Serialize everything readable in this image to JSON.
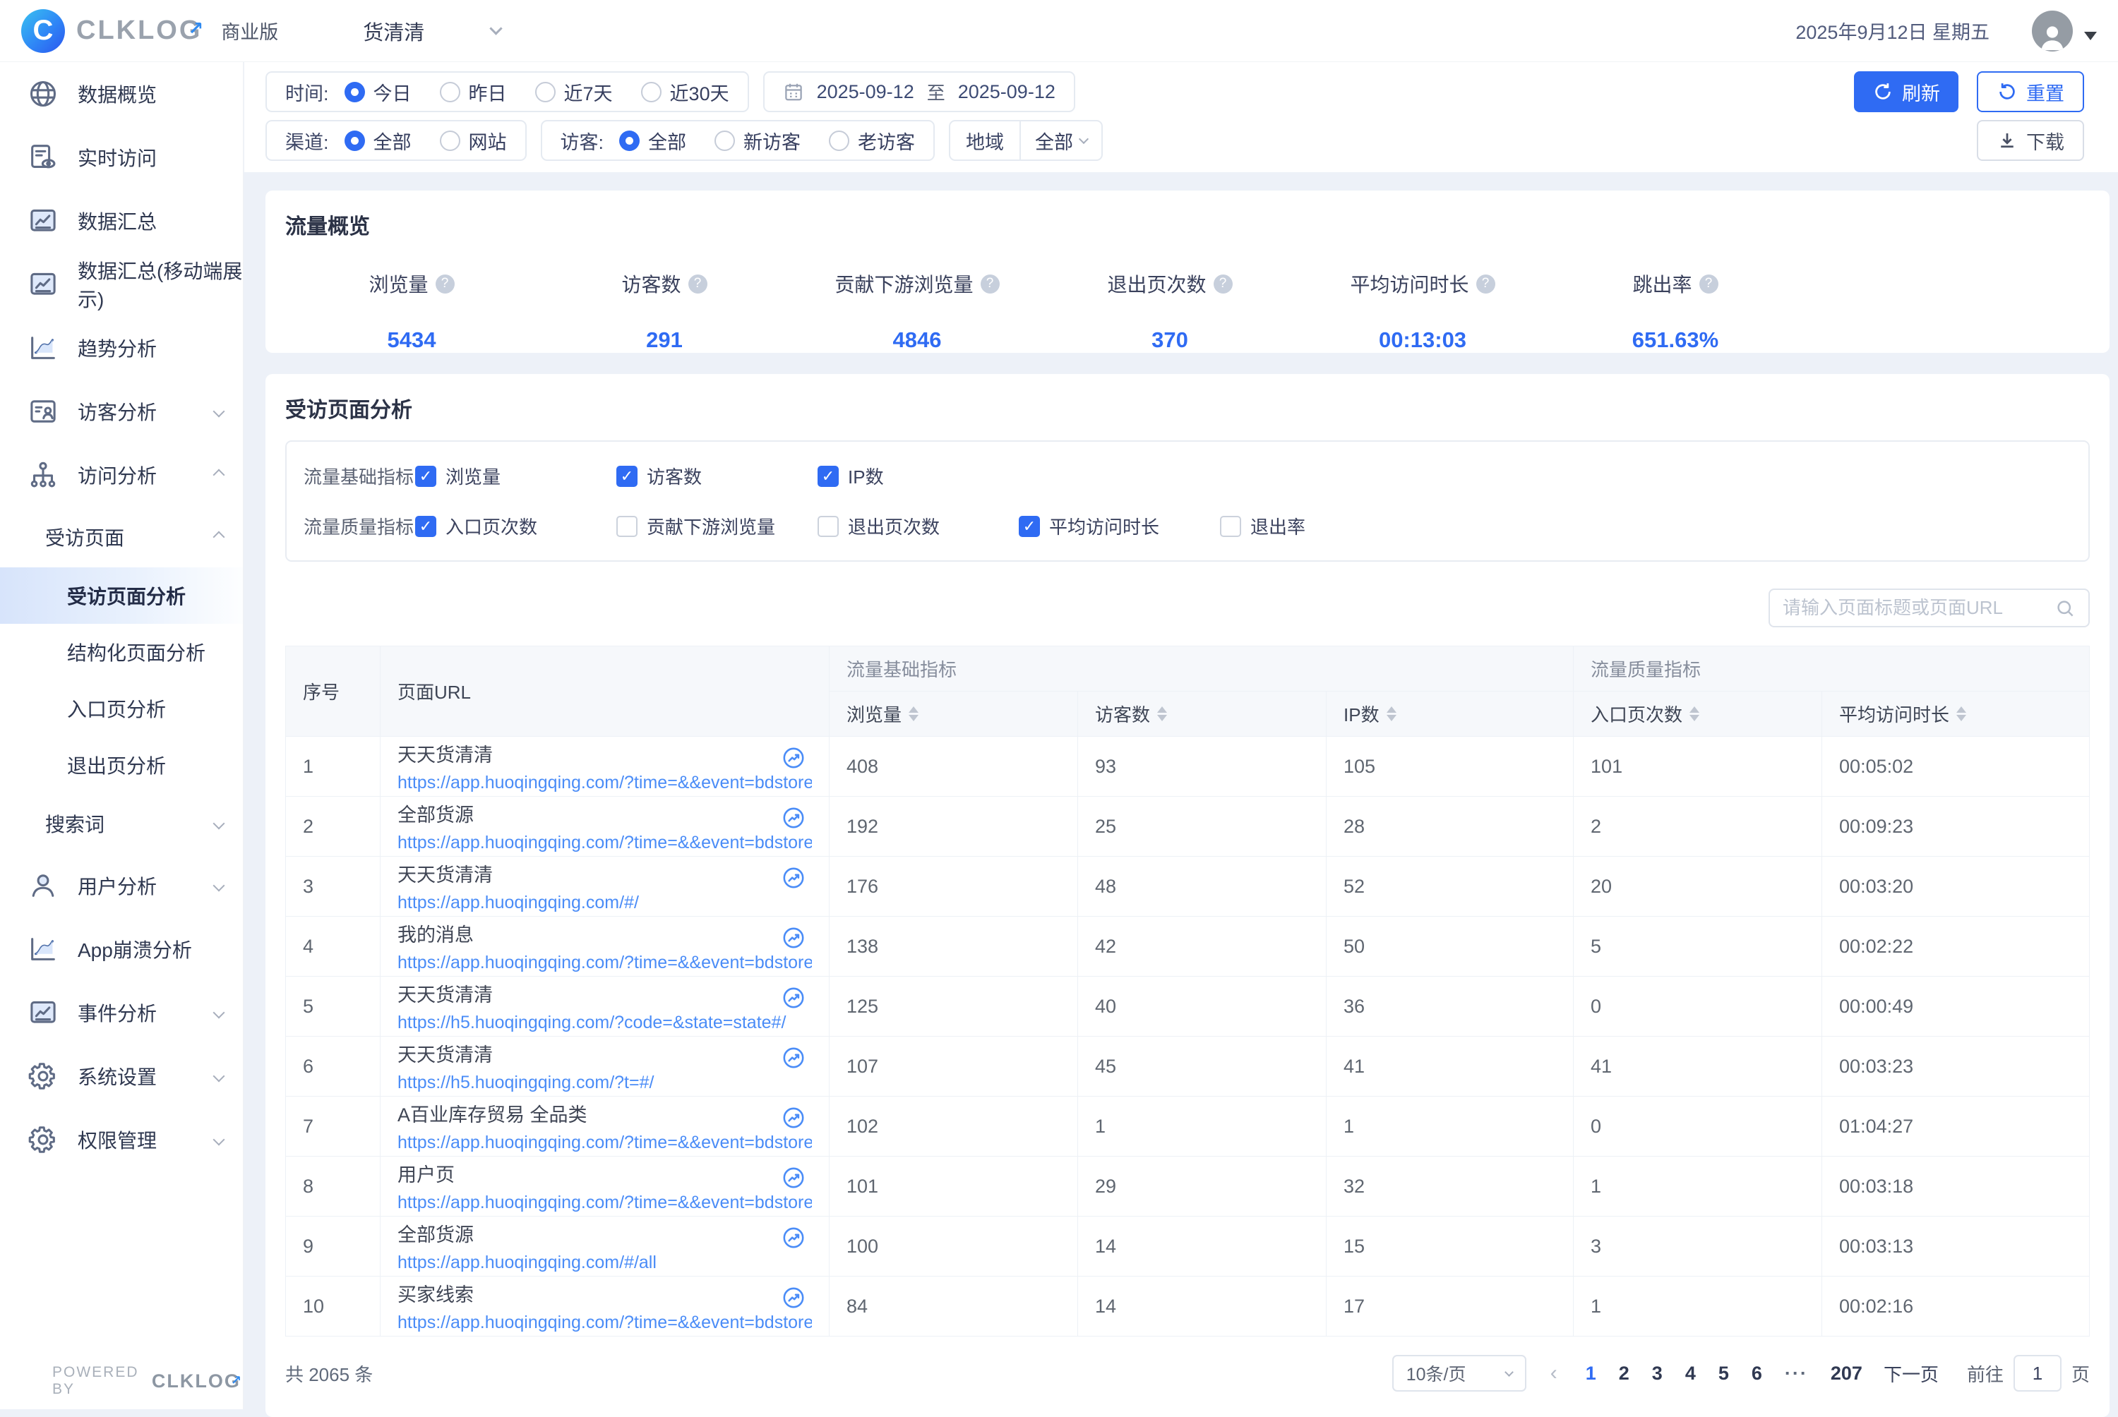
{
  "header": {
    "logo_letter": "C",
    "logo_text": "CLKLOG",
    "edition": "商业版",
    "project": "货清清",
    "date": "2025年9月12日 星期五"
  },
  "sidebar": {
    "items": [
      {
        "label": "数据概览",
        "icon": "globe",
        "type": "top"
      },
      {
        "label": "实时访问",
        "icon": "realtime",
        "type": "top"
      },
      {
        "label": "数据汇总",
        "icon": "report",
        "type": "top"
      },
      {
        "label": "数据汇总(移动端展示)",
        "icon": "report",
        "type": "top"
      },
      {
        "label": "趋势分析",
        "icon": "trend",
        "type": "top"
      },
      {
        "label": "访客分析",
        "icon": "visitor",
        "type": "top",
        "chevron": "down"
      },
      {
        "label": "访问分析",
        "icon": "visit",
        "type": "top",
        "chevron": "up"
      },
      {
        "label": "受访页面",
        "type": "sub1",
        "chevron": "up"
      },
      {
        "label": "受访页面分析",
        "type": "sub2",
        "active": true
      },
      {
        "label": "结构化页面分析",
        "type": "sub2"
      },
      {
        "label": "入口页分析",
        "type": "sub2"
      },
      {
        "label": "退出页分析",
        "type": "sub2"
      },
      {
        "label": "搜索词",
        "type": "sub1",
        "chevron": "down"
      },
      {
        "label": "用户分析",
        "icon": "user",
        "type": "top",
        "chevron": "down"
      },
      {
        "label": "App崩溃分析",
        "icon": "trend",
        "type": "top"
      },
      {
        "label": "事件分析",
        "icon": "report",
        "type": "top",
        "chevron": "down"
      },
      {
        "label": "系统设置",
        "icon": "gear",
        "type": "top",
        "chevron": "down"
      },
      {
        "label": "权限管理",
        "icon": "gear",
        "type": "top",
        "chevron": "down"
      }
    ],
    "powered_by": "POWERED BY",
    "powered_logo": "CLKLOG"
  },
  "filters": {
    "time": {
      "label": "时间:",
      "options": [
        "今日",
        "昨日",
        "近7天",
        "近30天"
      ],
      "selected": 0
    },
    "date_range": {
      "start": "2025-09-12",
      "separator": "至",
      "end": "2025-09-12"
    },
    "channel": {
      "label": "渠道:",
      "options": [
        "全部",
        "网站"
      ],
      "selected": 0
    },
    "visitor": {
      "label": "访客:",
      "options": [
        "全部",
        "新访客",
        "老访客"
      ],
      "selected": 0
    },
    "region": {
      "label": "地域",
      "value": "全部"
    },
    "refresh_label": "刷新",
    "reset_label": "重置",
    "download_label": "下载"
  },
  "overview": {
    "title": "流量概览",
    "metrics": [
      {
        "label": "浏览量",
        "value": "5434"
      },
      {
        "label": "访客数",
        "value": "291"
      },
      {
        "label": "贡献下游浏览量",
        "value": "4846"
      },
      {
        "label": "退出页次数",
        "value": "370"
      },
      {
        "label": "平均访问时长",
        "value": "00:13:03"
      },
      {
        "label": "跳出率",
        "value": "651.63%"
      }
    ]
  },
  "page_analysis": {
    "title": "受访页面分析",
    "indicator_rows": [
      {
        "label": "流量基础指标",
        "options": [
          {
            "label": "浏览量",
            "checked": true
          },
          {
            "label": "访客数",
            "checked": true
          },
          {
            "label": "IP数",
            "checked": true
          }
        ]
      },
      {
        "label": "流量质量指标",
        "options": [
          {
            "label": "入口页次数",
            "checked": true
          },
          {
            "label": "贡献下游浏览量",
            "checked": false
          },
          {
            "label": "退出页次数",
            "checked": false
          },
          {
            "label": "平均访问时长",
            "checked": true
          },
          {
            "label": "退出率",
            "checked": false
          }
        ]
      }
    ],
    "search_placeholder": "请输入页面标题或页面URL",
    "table": {
      "group_basic": "流量基础指标",
      "group_quality": "流量质量指标",
      "col_index": "序号",
      "col_url": "页面URL",
      "col_pv": "浏览量",
      "col_uv": "访客数",
      "col_ip": "IP数",
      "col_entry": "入口页次数",
      "col_avg_time": "平均访问时长",
      "rows": [
        {
          "index": "1",
          "title": "天天货清清",
          "url": "https://app.huoqingqing.com/?time=&&event=bdstore#/",
          "pv": "408",
          "uv": "93",
          "ip": "105",
          "entry": "101",
          "avg_time": "00:05:02"
        },
        {
          "index": "2",
          "title": "全部货源",
          "url": "https://app.huoqingqing.com/?time=&&event=bdstore#/all",
          "pv": "192",
          "uv": "25",
          "ip": "28",
          "entry": "2",
          "avg_time": "00:09:23"
        },
        {
          "index": "3",
          "title": "天天货清清",
          "url": "https://app.huoqingqing.com/#/",
          "pv": "176",
          "uv": "48",
          "ip": "52",
          "entry": "20",
          "avg_time": "00:03:20"
        },
        {
          "index": "4",
          "title": "我的消息",
          "url": "https://app.huoqingqing.com/?time=&&event=bdstore#/rec...",
          "pv": "138",
          "uv": "42",
          "ip": "50",
          "entry": "5",
          "avg_time": "00:02:22"
        },
        {
          "index": "5",
          "title": "天天货清清",
          "url": "https://h5.huoqingqing.com/?code=&state=state#/",
          "pv": "125",
          "uv": "40",
          "ip": "36",
          "entry": "0",
          "avg_time": "00:00:49"
        },
        {
          "index": "6",
          "title": "天天货清清",
          "url": "https://h5.huoqingqing.com/?t=#/",
          "pv": "107",
          "uv": "45",
          "ip": "41",
          "entry": "41",
          "avg_time": "00:03:23"
        },
        {
          "index": "7",
          "title": "A百业库存贸易 全品类",
          "url": "https://app.huoqingqing.com/?time=&&event=bdstore#/sho...",
          "pv": "102",
          "uv": "1",
          "ip": "1",
          "entry": "0",
          "avg_time": "01:04:27"
        },
        {
          "index": "8",
          "title": "用户页",
          "url": "https://app.huoqingqing.com/?time=&&event=bdstore#/user",
          "pv": "101",
          "uv": "29",
          "ip": "32",
          "entry": "1",
          "avg_time": "00:03:18"
        },
        {
          "index": "9",
          "title": "全部货源",
          "url": "https://app.huoqingqing.com/#/all",
          "pv": "100",
          "uv": "14",
          "ip": "15",
          "entry": "3",
          "avg_time": "00:03:13"
        },
        {
          "index": "10",
          "title": "买家线索",
          "url": "https://app.huoqingqing.com/?time=&&event=bdstore#/cou...",
          "pv": "84",
          "uv": "14",
          "ip": "17",
          "entry": "1",
          "avg_time": "00:02:16"
        }
      ]
    },
    "pagination": {
      "total": "共 2065 条",
      "page_size": "10条/页",
      "prev": "‹",
      "pages": [
        "1",
        "2",
        "3",
        "4",
        "5",
        "6",
        "···",
        "207"
      ],
      "active_page": "1",
      "next": "下一页",
      "goto_label": "前往",
      "goto_value": "1",
      "page_unit": "页"
    }
  },
  "colors": {
    "primary": "#2f6bf3",
    "link": "#4a8cf7"
  }
}
